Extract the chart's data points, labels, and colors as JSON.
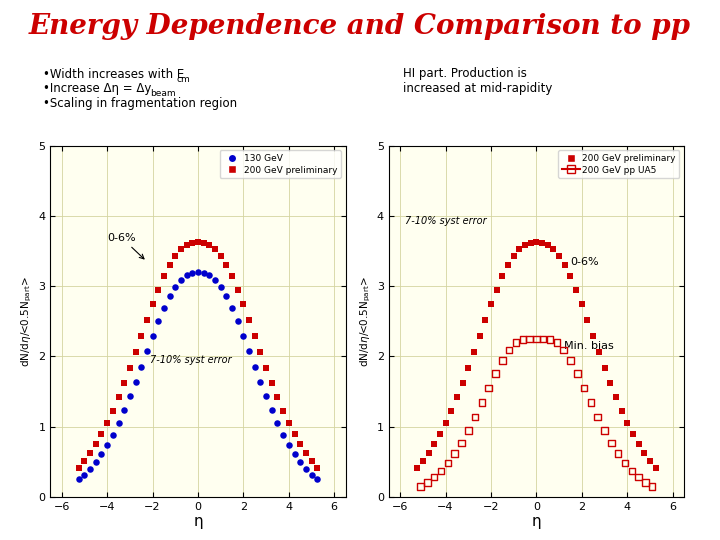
{
  "title": "Energy Dependence and Comparison to pp",
  "title_color": "#cc0000",
  "title_fontsize": 20,
  "bullet1": "•Width increases with E",
  "bullet1_cm": "cm",
  "bullet2": "•Increase Δη = Δy",
  "bullet2_beam": "beam",
  "bullet3": "•Scaling in fragmentation region",
  "right_text1": "HI part. Production is",
  "right_text2": "increased at mid-rapidity",
  "plot_bg": "#fffff0",
  "xlabel": "η",
  "xlim": [
    -6.5,
    6.5
  ],
  "ylim": [
    0,
    5
  ],
  "xticks": [
    -6,
    -4,
    -2,
    0,
    2,
    4,
    6
  ],
  "yticks": [
    0,
    1,
    2,
    3,
    4,
    5
  ],
  "left_annot": "0-6%",
  "right_annot1": "0-6%",
  "right_annot2": "Min. bias",
  "syst_error_left": "7-10% syst error",
  "syst_error_right": "7-10% syst error",
  "grid_color": "#d4d4a0",
  "blue_color": "#0000cc",
  "red_color": "#cc0000"
}
